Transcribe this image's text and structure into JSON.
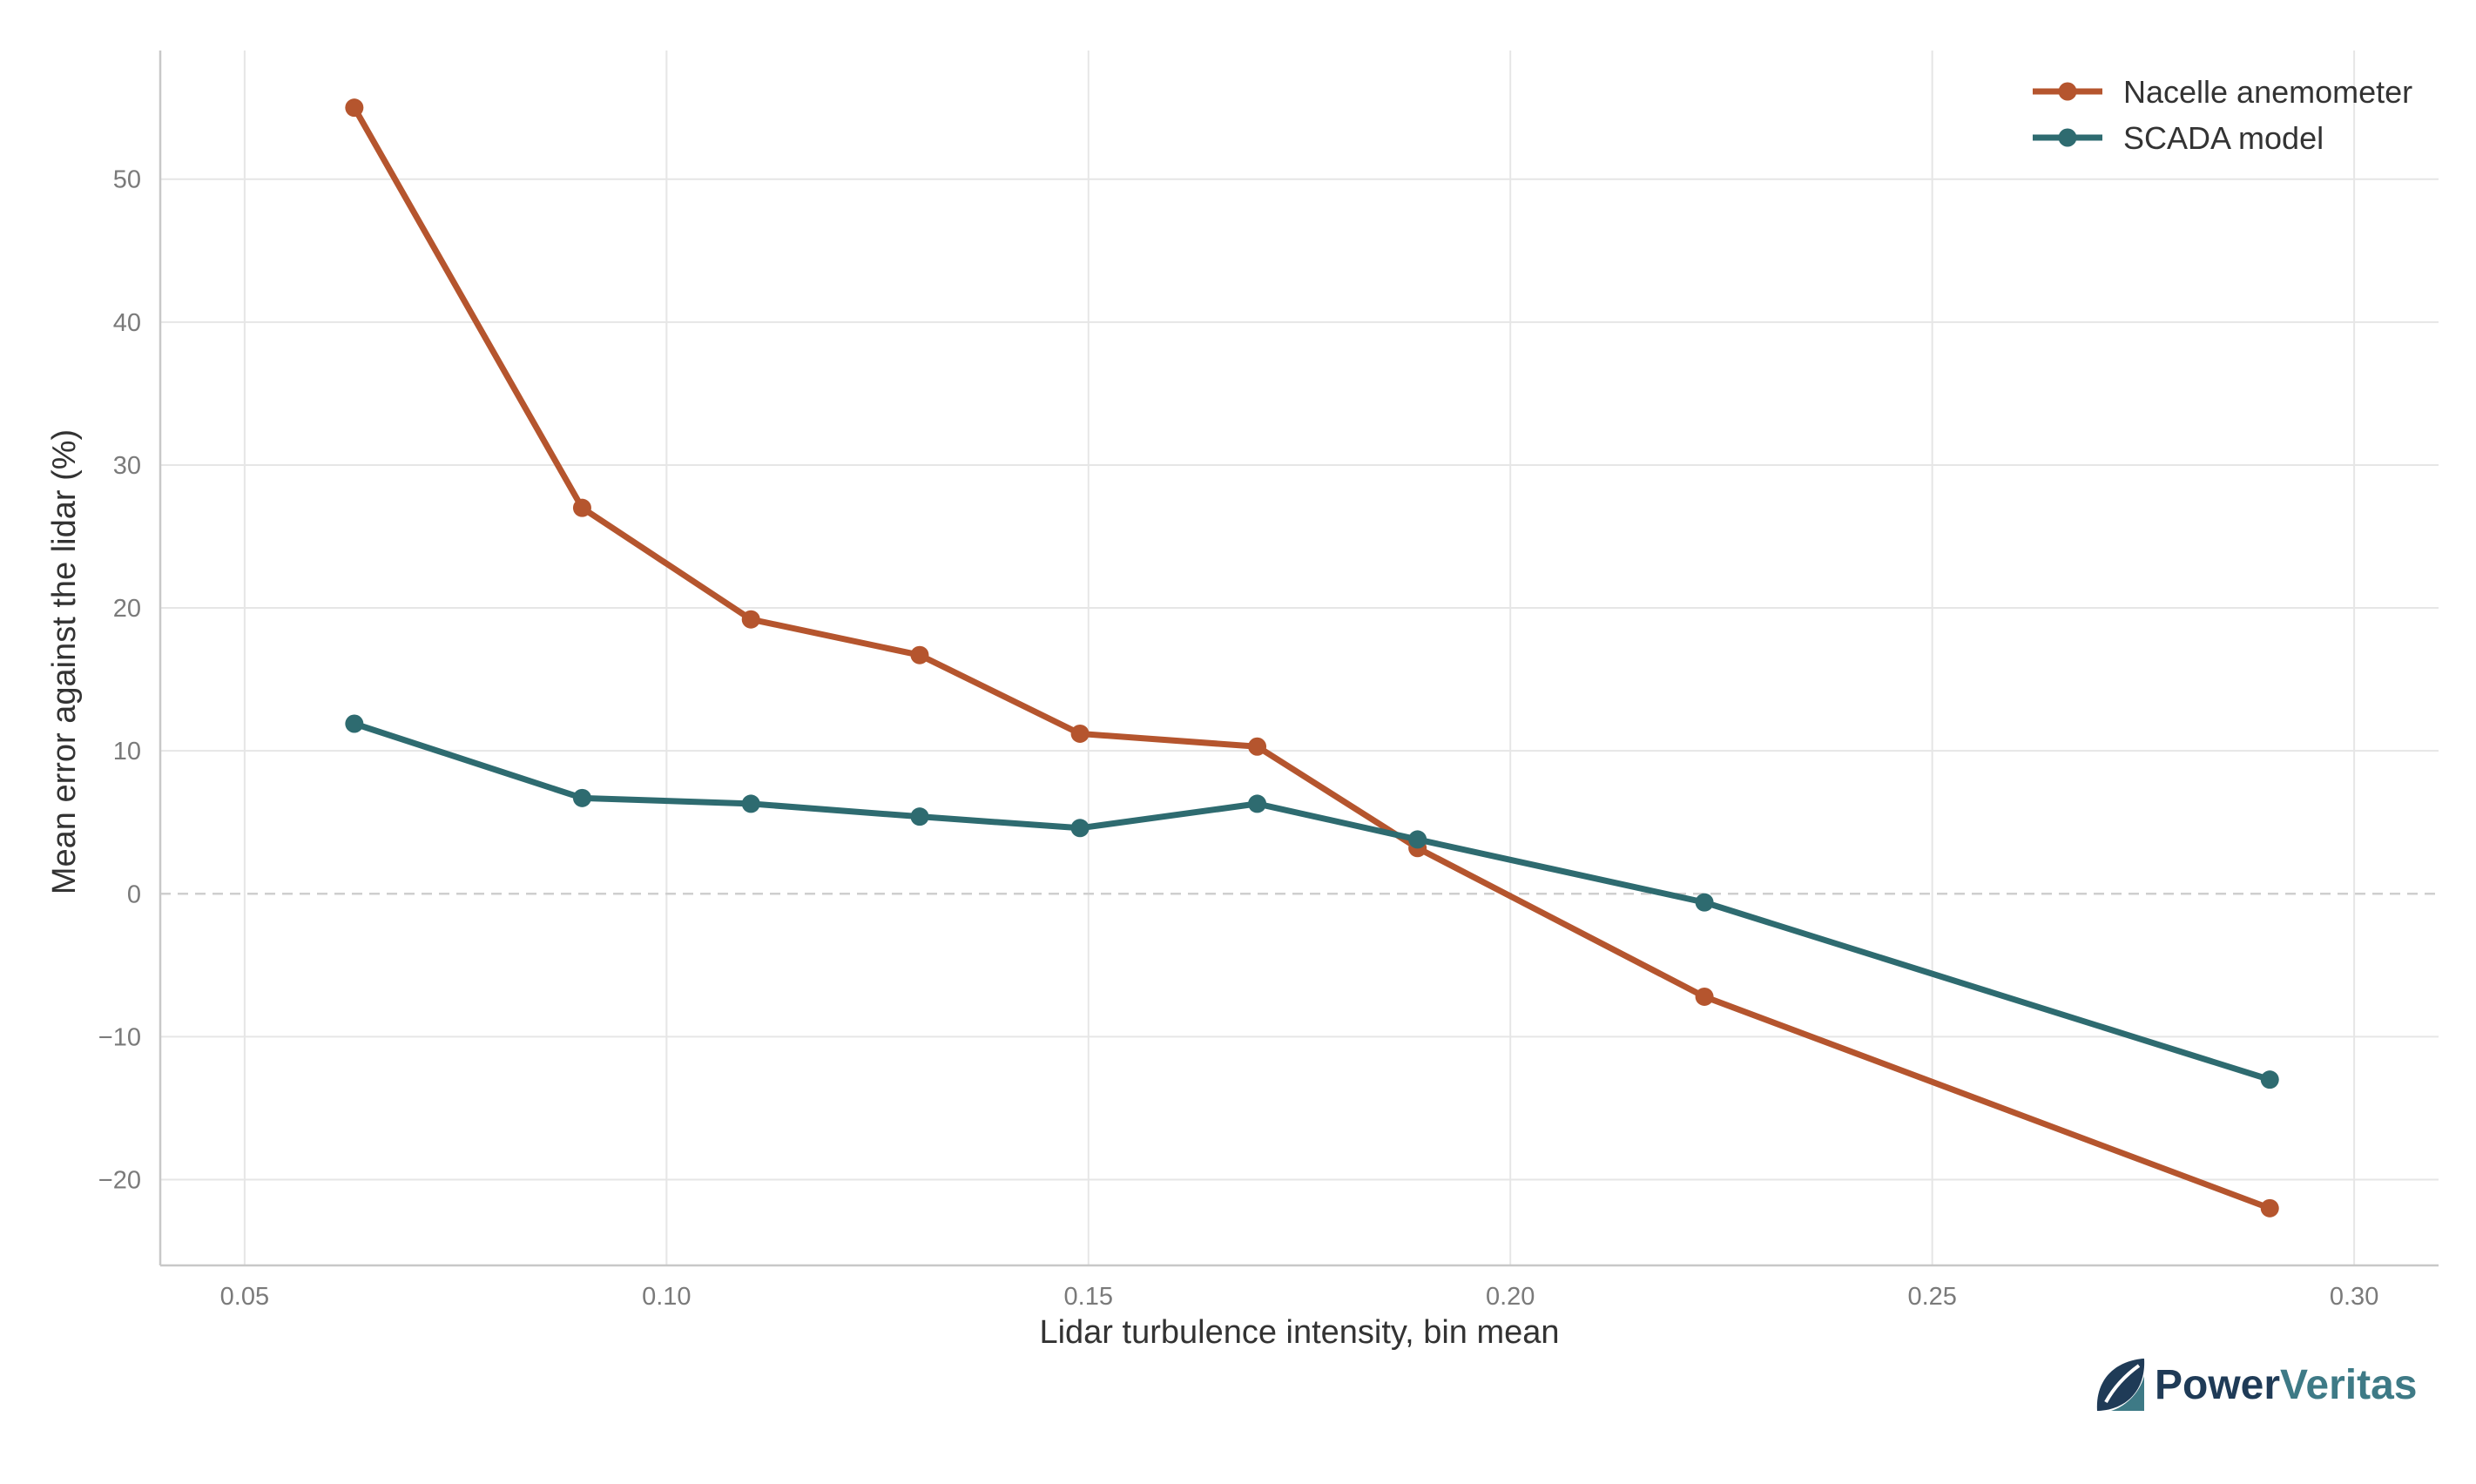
{
  "chart_data": {
    "type": "line",
    "title": "",
    "xlabel": "Lidar turbulence intensity, bin mean",
    "ylabel": "Mean error against the lidar (%)",
    "xlim": [
      0.04,
      0.31
    ],
    "ylim": [
      -26,
      59
    ],
    "x_ticks": [
      0.05,
      0.1,
      0.15,
      0.2,
      0.25,
      0.3
    ],
    "x_tick_labels": [
      "0.05",
      "0.10",
      "0.15",
      "0.20",
      "0.25",
      "0.30"
    ],
    "y_ticks": [
      -20,
      -10,
      0,
      10,
      20,
      30,
      40,
      50
    ],
    "y_tick_labels": [
      "−20",
      "−10",
      "0",
      "10",
      "20",
      "30",
      "40",
      "50"
    ],
    "grid": true,
    "zero_reference_line": true,
    "legend_position": "top-right",
    "series": [
      {
        "name": "Nacelle anemometer",
        "color": "#b5552e",
        "x": [
          0.063,
          0.09,
          0.11,
          0.13,
          0.149,
          0.17,
          0.189,
          0.223,
          0.29
        ],
        "y": [
          55.0,
          27.0,
          19.2,
          16.7,
          11.2,
          10.3,
          3.2,
          -7.2,
          -22.0
        ]
      },
      {
        "name": "SCADA model",
        "color": "#2e6b70",
        "x": [
          0.063,
          0.09,
          0.11,
          0.13,
          0.149,
          0.17,
          0.189,
          0.223,
          0.29
        ],
        "y": [
          11.9,
          6.7,
          6.3,
          5.4,
          4.6,
          6.3,
          3.8,
          -0.6,
          -13.0
        ]
      }
    ]
  },
  "branding": {
    "logo_icon": "leaf-mark-icon",
    "logo_text_part1": "Power",
    "logo_text_part2": "Veritas",
    "color_dark": "#1f3b57",
    "color_teal": "#3e7a86"
  }
}
